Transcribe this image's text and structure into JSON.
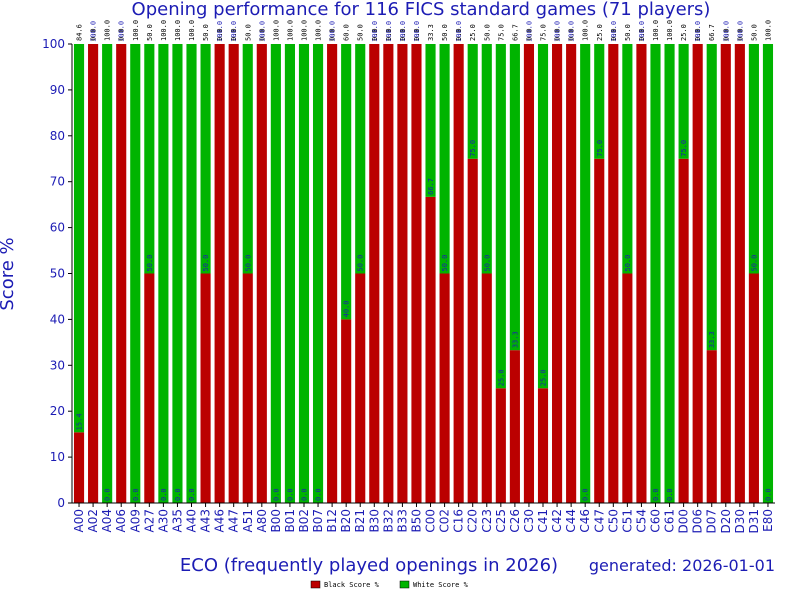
{
  "chart_data": {
    "type": "bar",
    "stacked": true,
    "title": "Opening performance for 116 FICS standard games (71 players)",
    "xlabel": "ECO (frequently played openings in 2026)",
    "ylabel": "Score %",
    "footer": "generated: 2026-01-01",
    "ylim": [
      0,
      100
    ],
    "yticks": [
      0,
      10,
      20,
      30,
      40,
      50,
      60,
      70,
      80,
      90,
      100
    ],
    "grid": false,
    "legend_position": "bottom-center",
    "categories": [
      "A00",
      "A02",
      "A04",
      "A06",
      "A09",
      "A27",
      "A30",
      "A35",
      "A40",
      "A43",
      "A46",
      "A47",
      "A51",
      "A80",
      "B00",
      "B01",
      "B02",
      "B07",
      "B12",
      "B20",
      "B21",
      "B30",
      "B32",
      "B33",
      "B50",
      "C00",
      "C02",
      "C16",
      "C20",
      "C23",
      "C25",
      "C26",
      "C30",
      "C41",
      "C42",
      "C44",
      "C46",
      "C47",
      "C50",
      "C51",
      "C54",
      "C60",
      "C61",
      "D00",
      "D06",
      "D07",
      "D20",
      "D30",
      "D31",
      "E80"
    ],
    "series": [
      {
        "name": "Black Score %",
        "color": "#bb0000",
        "values": [
          15.4,
          100,
          0,
          100,
          0,
          50,
          0,
          0,
          0,
          50,
          100,
          100,
          50,
          100,
          0,
          0,
          0,
          0,
          100,
          40,
          50,
          100,
          100,
          100,
          100,
          66.7,
          50,
          100,
          75,
          50,
          25,
          33.3,
          100,
          25,
          100,
          100,
          0,
          75,
          100,
          50,
          100,
          0,
          0,
          75,
          100,
          33.3,
          100,
          100,
          50,
          0
        ]
      },
      {
        "name": "White Score %",
        "color": "#00b400",
        "values": [
          84.6,
          0,
          100,
          0,
          100,
          50,
          100,
          100,
          100,
          50,
          0,
          0,
          50,
          0,
          100,
          100,
          100,
          100,
          0,
          60,
          50,
          0,
          0,
          0,
          0,
          33.3,
          50,
          0,
          25,
          50,
          75,
          66.7,
          0,
          75,
          0,
          0,
          100,
          25,
          0,
          50,
          0,
          100,
          100,
          25,
          0,
          66.7,
          0,
          0,
          50,
          100
        ]
      }
    ]
  }
}
